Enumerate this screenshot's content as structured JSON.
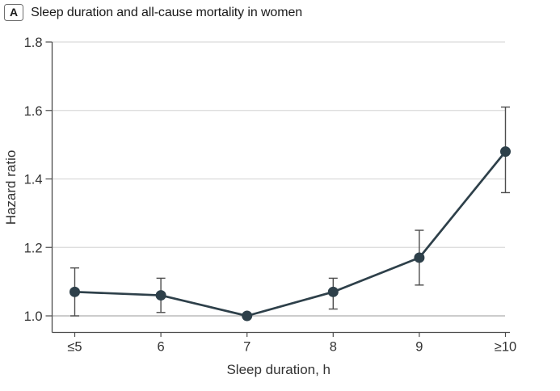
{
  "figure": {
    "panel_label": "A",
    "title": "Sleep duration and all-cause mortality in women"
  },
  "chart_data": {
    "type": "line",
    "title": "Sleep duration and all-cause mortality in women",
    "xlabel": "Sleep duration, h",
    "ylabel": "Hazard ratio",
    "categories": [
      "≤5",
      "6",
      "7",
      "8",
      "9",
      "≥10"
    ],
    "values": [
      1.07,
      1.06,
      1.0,
      1.07,
      1.17,
      1.48
    ],
    "ci_lower": [
      1.0,
      1.01,
      null,
      1.02,
      1.09,
      1.36
    ],
    "ci_upper": [
      1.14,
      1.11,
      null,
      1.11,
      1.25,
      1.61
    ],
    "ylim": [
      0.95,
      1.8
    ],
    "yticks": [
      1.0,
      1.2,
      1.4,
      1.6,
      1.8
    ],
    "grid": "horizontal",
    "reference_line": 1.0,
    "legend": "none",
    "colors": {
      "line": "#2E404A",
      "point": "#2E404A",
      "error_bar": "#4D4D4D",
      "gridline": "#DADADA",
      "reference_gridline": "#ADADAD",
      "axis": "#4C4C4C",
      "tick_text": "#333333",
      "title_text": "#1A1A1A"
    }
  }
}
